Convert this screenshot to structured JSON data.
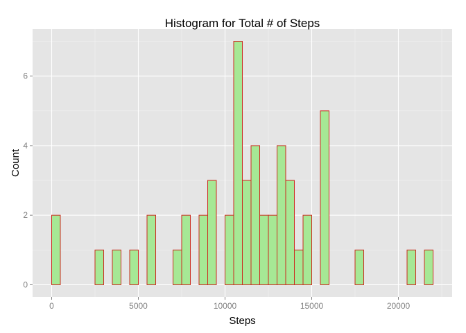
{
  "chart_data": {
    "type": "bar",
    "title": "Histogram for Total # of Steps",
    "xlabel": "Steps",
    "ylabel": "Count",
    "xlim": [
      -1100,
      23100
    ],
    "ylim": [
      -0.35,
      7.35
    ],
    "bin_width": 500,
    "x_ticks": [
      0,
      5000,
      10000,
      15000,
      20000
    ],
    "y_ticks": [
      0,
      2,
      4,
      6
    ],
    "x_tick_labels": [
      "0",
      "5000",
      "10000",
      "15000",
      "20000"
    ],
    "y_tick_labels": [
      "0",
      "2",
      "4",
      "6"
    ],
    "bins_start": [
      0,
      500,
      1000,
      1500,
      2000,
      2500,
      3000,
      3500,
      4000,
      4500,
      5000,
      5500,
      6000,
      6500,
      7000,
      7500,
      8000,
      8500,
      9000,
      9500,
      10000,
      10500,
      11000,
      11500,
      12000,
      12500,
      13000,
      13500,
      14000,
      14500,
      15000,
      15500,
      16000,
      16500,
      17000,
      17500,
      18000,
      18500,
      19000,
      19500,
      20000,
      20500,
      21000,
      21500
    ],
    "values": [
      2,
      0,
      0,
      0,
      0,
      1,
      0,
      1,
      0,
      1,
      0,
      2,
      0,
      0,
      1,
      2,
      0,
      2,
      3,
      0,
      2,
      7,
      3,
      4,
      2,
      2,
      4,
      3,
      1,
      2,
      0,
      5,
      0,
      0,
      0,
      1,
      0,
      0,
      0,
      0,
      0,
      1,
      0,
      1
    ],
    "grid": true,
    "legend": "none",
    "colors": {
      "panel_background": "#e5e5e5",
      "bar_fill": "#a6e895",
      "bar_outline": "#cc2a1f",
      "tick_text": "#7f7f7f"
    }
  }
}
